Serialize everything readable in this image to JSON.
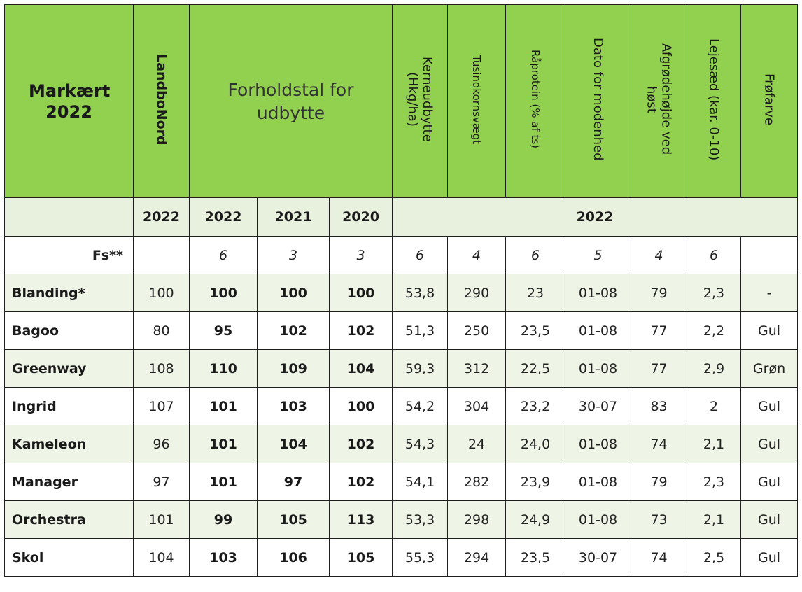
{
  "header": {
    "title": "Markært 2022",
    "landbonord": "LandboNord",
    "ratio": "Forholdstal for udbytte",
    "kerne": "Kerneudbytte (Hkg/ha)",
    "tusind": "Tusindkornsvægt",
    "raaprotein": "Råprotein (% af ts)",
    "dato": "Dato for modenhed",
    "afgroede": "Afgrødehøjde ved høst",
    "lejesaed": "Lejesæd (kar. 0-10)",
    "froefarve": "Frøfarve"
  },
  "years": {
    "y_landbo": "2022",
    "y1": "2022",
    "y2": "2021",
    "y3": "2020",
    "y_rest": "2022"
  },
  "fs": {
    "label": "Fs**",
    "values": [
      "",
      "6",
      "3",
      "3",
      "6",
      "4",
      "6",
      "5",
      "4",
      "6",
      ""
    ]
  },
  "rows": [
    {
      "name": "Blanding*",
      "cells": [
        "100",
        "100",
        "100",
        "100",
        "53,8",
        "290",
        "23",
        "01-08",
        "79",
        "2,3",
        "-"
      ]
    },
    {
      "name": "Bagoo",
      "cells": [
        "80",
        "95",
        "102",
        "102",
        "51,3",
        "250",
        "23,5",
        "01-08",
        "77",
        "2,2",
        "Gul"
      ]
    },
    {
      "name": "Greenway",
      "cells": [
        "108",
        "110",
        "109",
        "104",
        "59,3",
        "312",
        "22,5",
        "01-08",
        "77",
        "2,9",
        "Grøn"
      ]
    },
    {
      "name": "Ingrid",
      "cells": [
        "107",
        "101",
        "103",
        "100",
        "54,2",
        "304",
        "23,2",
        "30-07",
        "83",
        "2",
        "Gul"
      ]
    },
    {
      "name": "Kameleon",
      "cells": [
        "96",
        "101",
        "104",
        "102",
        "54,3",
        "24",
        "24,0",
        "01-08",
        "74",
        "2,1",
        "Gul"
      ]
    },
    {
      "name": "Manager",
      "cells": [
        "97",
        "101",
        "97",
        "102",
        "54,1",
        "282",
        "23,9",
        "01-08",
        "79",
        "2,3",
        "Gul"
      ]
    },
    {
      "name": "Orchestra",
      "cells": [
        "101",
        "99",
        "105",
        "113",
        "53,3",
        "298",
        "24,9",
        "01-08",
        "73",
        "2,1",
        "Gul"
      ]
    },
    {
      "name": "Skol",
      "cells": [
        "104",
        "103",
        "106",
        "105",
        "55,3",
        "294",
        "23,5",
        "30-07",
        "74",
        "2,5",
        "Gul"
      ]
    }
  ]
}
